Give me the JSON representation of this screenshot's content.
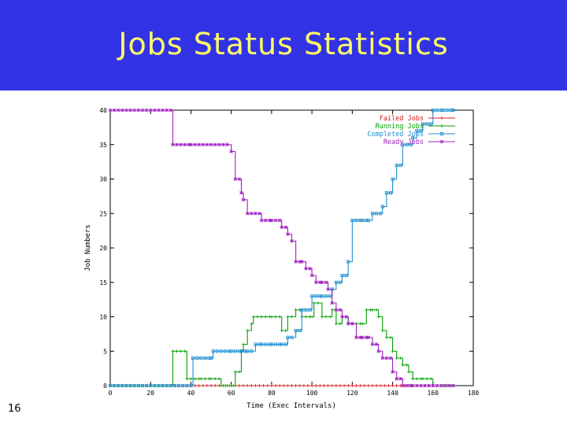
{
  "slide": {
    "title": "Jobs Status Statistics",
    "number": "16"
  },
  "colors": {
    "banner": "#3333e6",
    "title": "#ffff66",
    "failed": "#d42020",
    "running": "#00a000",
    "completed": "#1f8fd0",
    "ready": "#a020c0"
  },
  "chart_data": {
    "type": "line",
    "title": "",
    "xlabel": "Time (Exec Intervals)",
    "ylabel": "Job Numbers",
    "xlim": [
      0,
      180
    ],
    "ylim": [
      0,
      40
    ],
    "xticks": [
      0,
      20,
      40,
      60,
      80,
      100,
      120,
      140,
      160,
      180
    ],
    "yticks": [
      0,
      5,
      10,
      15,
      20,
      25,
      30,
      35,
      40
    ],
    "grid": false,
    "legend_position": "top-right",
    "series": [
      {
        "name": "Failed Jobs",
        "color": "#d42020",
        "marker": "+",
        "x": [
          0,
          170
        ],
        "y": [
          0,
          0
        ]
      },
      {
        "name": "Running Jobs",
        "color": "#00a000",
        "marker": "+",
        "x": [
          0,
          30,
          31,
          37,
          38,
          45,
          50,
          55,
          59,
          62,
          65,
          66,
          68,
          70,
          71,
          75,
          80,
          82,
          85,
          88,
          90,
          92,
          95,
          100,
          101,
          105,
          110,
          112,
          115,
          118,
          120,
          125,
          127,
          130,
          133,
          135,
          137,
          140,
          142,
          145,
          148,
          150,
          155,
          160,
          165,
          170
        ],
        "y": [
          0,
          0,
          5,
          5,
          1,
          1,
          1,
          0,
          0,
          2,
          5,
          6,
          8,
          9,
          10,
          10,
          10,
          10,
          8,
          10,
          10,
          11,
          10,
          10,
          12,
          10,
          11,
          9,
          10,
          9,
          9,
          9,
          11,
          11,
          10,
          8,
          7,
          5,
          4,
          3,
          2,
          1,
          1,
          0,
          0,
          0
        ]
      },
      {
        "name": "Completed Jobs",
        "color": "#1f8fd0",
        "marker": "square",
        "x": [
          0,
          40,
          41,
          50,
          51,
          60,
          62,
          65,
          68,
          70,
          72,
          75,
          80,
          82,
          85,
          88,
          90,
          92,
          95,
          100,
          102,
          105,
          110,
          112,
          115,
          118,
          120,
          122,
          125,
          128,
          130,
          135,
          137,
          140,
          142,
          145,
          150,
          152,
          155,
          160,
          162,
          165,
          170
        ],
        "y": [
          0,
          0,
          4,
          4,
          5,
          5,
          5,
          5,
          5,
          5,
          6,
          6,
          6,
          6,
          6,
          7,
          7,
          8,
          11,
          13,
          13,
          13,
          14,
          15,
          16,
          18,
          24,
          24,
          24,
          24,
          25,
          26,
          28,
          30,
          32,
          35,
          36,
          37,
          38,
          40,
          40,
          40,
          40
        ]
      },
      {
        "name": "Ready Jobs",
        "color": "#a020c0",
        "marker": "asterisk",
        "x": [
          0,
          30,
          31,
          40,
          50,
          58,
          60,
          62,
          65,
          66,
          68,
          70,
          75,
          77,
          80,
          85,
          88,
          90,
          92,
          95,
          97,
          100,
          102,
          105,
          108,
          110,
          112,
          115,
          118,
          120,
          122,
          125,
          128,
          130,
          133,
          135,
          137,
          140,
          142,
          145,
          150,
          160,
          170
        ],
        "y": [
          40,
          40,
          35,
          35,
          35,
          35,
          34,
          30,
          28,
          27,
          25,
          25,
          24,
          24,
          24,
          23,
          22,
          21,
          18,
          18,
          17,
          16,
          15,
          15,
          14,
          12,
          11,
          10,
          9,
          9,
          7,
          7,
          7,
          6,
          5,
          4,
          4,
          2,
          1,
          0,
          0,
          0,
          0
        ]
      }
    ]
  }
}
